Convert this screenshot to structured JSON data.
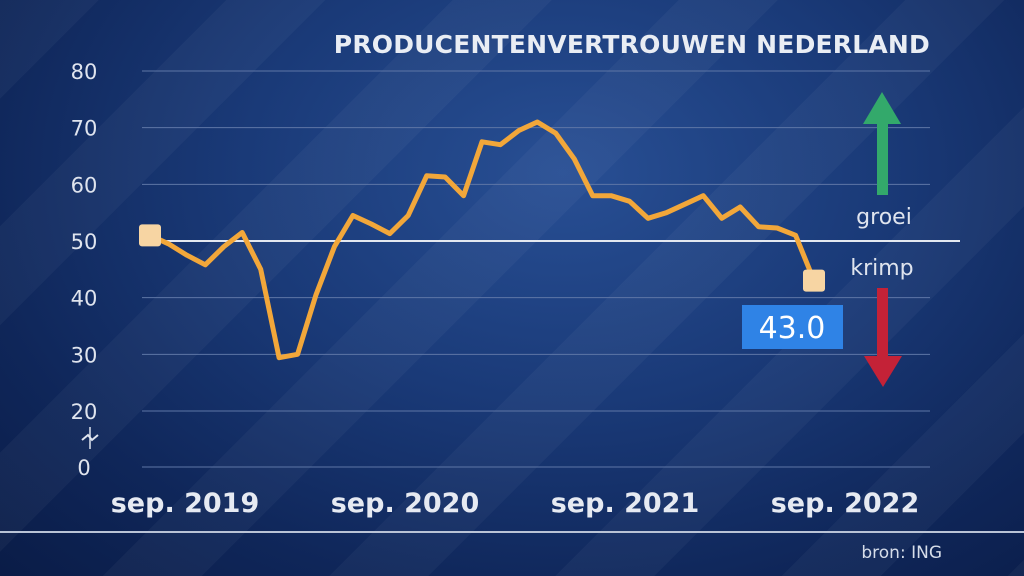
{
  "title": "PRODUCENTENVERTROUWEN NEDERLAND",
  "source": "bron: ING",
  "legend": {
    "up_label": "groei",
    "down_label": "krimp",
    "up_color": "#33a96b",
    "down_color": "#c42237"
  },
  "latest_value_label": "43.0",
  "colors": {
    "line": "#f2a73a",
    "marker": "#f7d5a3",
    "badge": "#2f83e6",
    "grid": "#5e76a6",
    "reference": "#e3e8f0",
    "text": "#dfe4ee"
  },
  "chart_data": {
    "type": "line",
    "title": "PRODUCENTENVERTROUWEN NEDERLAND",
    "xlabel": "",
    "ylabel": "",
    "x_ticks": [
      "sep. 2019",
      "sep. 2020",
      "sep. 2021",
      "sep. 2022"
    ],
    "y_ticks": [
      0,
      20,
      30,
      40,
      50,
      60,
      70,
      80
    ],
    "ylim": [
      0,
      80
    ],
    "y_axis_break": true,
    "reference_line": 50,
    "grid": true,
    "series": [
      {
        "x": [
          "2019-09",
          "2019-10",
          "2019-11",
          "2019-12",
          "2020-01",
          "2020-02",
          "2020-03",
          "2020-04",
          "2020-05",
          "2020-06",
          "2020-07",
          "2020-08",
          "2020-09",
          "2020-10",
          "2020-11",
          "2020-12",
          "2021-01",
          "2021-02",
          "2021-03",
          "2021-04",
          "2021-05",
          "2021-06",
          "2021-07",
          "2021-08",
          "2021-09",
          "2021-10",
          "2021-11",
          "2021-12",
          "2022-01",
          "2022-02",
          "2022-03",
          "2022-04",
          "2022-05",
          "2022-06",
          "2022-07",
          "2022-08",
          "2022-09"
        ],
        "values": [
          51.0,
          49.5,
          47.5,
          45.8,
          49.0,
          51.5,
          45.0,
          29.4,
          30.0,
          40.5,
          49.0,
          54.5,
          53.0,
          51.3,
          54.5,
          61.5,
          61.3,
          58.0,
          67.5,
          67.0,
          69.5,
          71.0,
          69.0,
          64.5,
          58.0,
          58.0,
          57.0,
          54.0,
          55.0,
          56.5,
          58.0,
          54.0,
          56.0,
          52.5,
          52.3,
          51.0,
          43.0
        ]
      }
    ]
  }
}
